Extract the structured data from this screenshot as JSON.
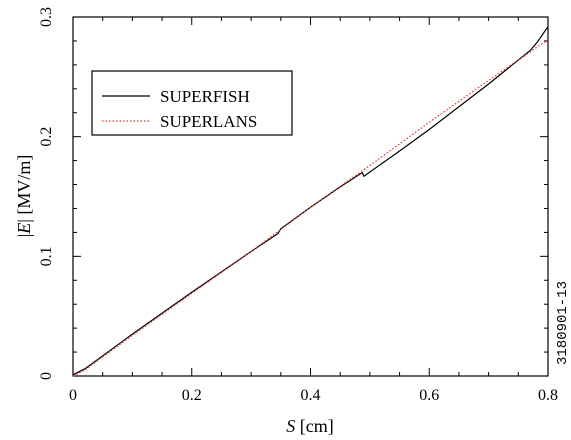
{
  "chart_data": {
    "type": "line",
    "title": "",
    "xlabel": {
      "var": "S",
      "unit": " [cm]"
    },
    "ylabel": {
      "var": "E",
      "unit": " [MV/m]"
    },
    "xlim": [
      0,
      0.8
    ],
    "ylim": [
      0,
      0.3
    ],
    "x_ticks": [
      "0",
      "0.2",
      "0.4",
      "0.6",
      "0.8"
    ],
    "y_ticks": [
      "0",
      "0.1",
      "0.2",
      "0.3"
    ],
    "grid": false,
    "legend_position": "upper-left",
    "side_label": "3180901-13",
    "series": [
      {
        "name": "SUPERFISH",
        "color": "#000000",
        "style": "solid",
        "points": [
          [
            0,
            0.001
          ],
          [
            0.02,
            0.006
          ],
          [
            0.1,
            0.035
          ],
          [
            0.2,
            0.07
          ],
          [
            0.3,
            0.104
          ],
          [
            0.345,
            0.119
          ],
          [
            0.35,
            0.123
          ],
          [
            0.4,
            0.141
          ],
          [
            0.45,
            0.158
          ],
          [
            0.487,
            0.17
          ],
          [
            0.49,
            0.167
          ],
          [
            0.55,
            0.188
          ],
          [
            0.6,
            0.206
          ],
          [
            0.7,
            0.244
          ],
          [
            0.77,
            0.272
          ],
          [
            0.782,
            0.279
          ],
          [
            0.8,
            0.292
          ]
        ]
      },
      {
        "name": "SUPERLANS",
        "color": "#e8352a",
        "style": "dotted",
        "points": [
          [
            0,
            0.0
          ],
          [
            0.02,
            0.005
          ],
          [
            0.1,
            0.034
          ],
          [
            0.2,
            0.069
          ],
          [
            0.3,
            0.104
          ],
          [
            0.4,
            0.141
          ],
          [
            0.5,
            0.176
          ],
          [
            0.6,
            0.212
          ],
          [
            0.7,
            0.247
          ],
          [
            0.8,
            0.281
          ]
        ]
      }
    ]
  }
}
